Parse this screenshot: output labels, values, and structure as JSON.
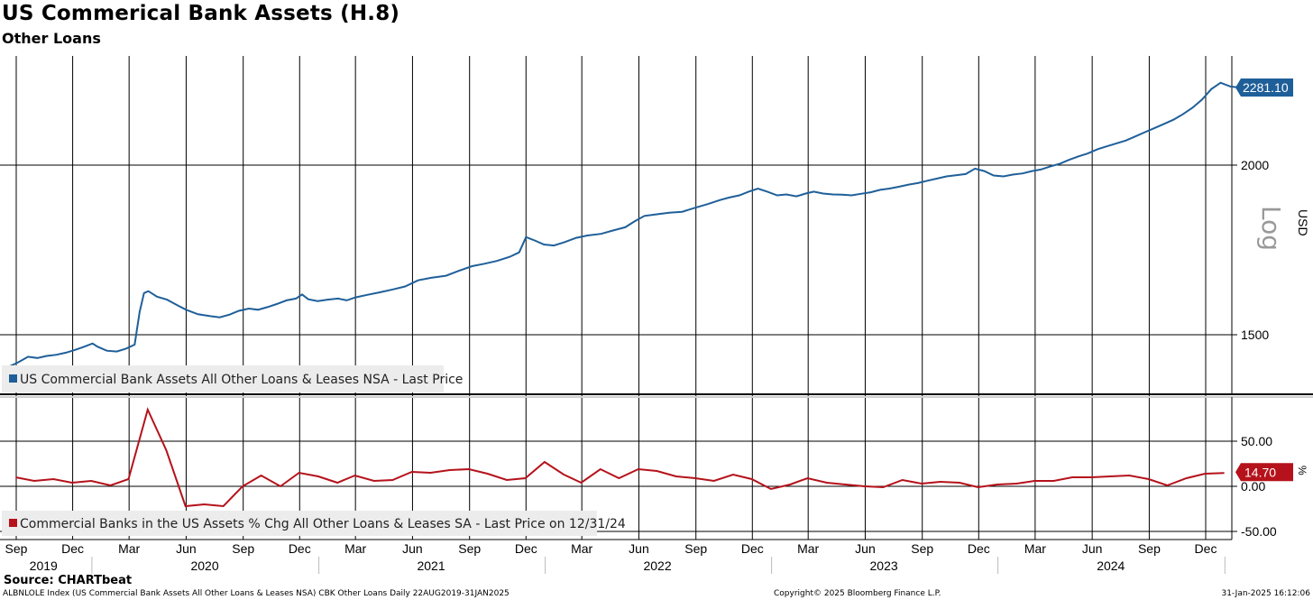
{
  "header": {
    "title": "US Commerical Bank Assets (H.8)",
    "subtitle": "Other Loans"
  },
  "footer": {
    "source": "Source: CHARTbeat",
    "index_desc": "ALBNLOLE Index (US Commercial Bank Assets All Other Loans & Leases NSA) CBK Other Loans  Daily 22AUG2019-31JAN2025",
    "copyright": "Copyright© 2025 Bloomberg Finance L.P.",
    "timestamp": "31-Jan-2025 16:12:06"
  },
  "colors": {
    "top_series": "#1f5f99",
    "bottom_series": "#b5121b",
    "top_badge": "#1f5f99",
    "bottom_badge": "#b5121b"
  },
  "chart_data": [
    {
      "type": "line",
      "scale": "log",
      "ylabel": "USD",
      "scale_label": "Log",
      "ylim": [
        1400,
        2330
      ],
      "yticks": [
        {
          "value": 1500,
          "label": "1500"
        },
        {
          "value": 2000,
          "label": "2000"
        }
      ],
      "last_value_label": "2281.10",
      "legend": "US Commercial Bank Assets All Other Loans & Leases NSA - Last Price",
      "series": [
        {
          "name": "US Commercial Bank Assets All Other Loans & Leases NSA - Last Price",
          "points": [
            [
              "2019-08-22",
              1422
            ],
            [
              "2019-09-05",
              1432
            ],
            [
              "2019-09-20",
              1445
            ],
            [
              "2019-10-05",
              1442
            ],
            [
              "2019-10-20",
              1447
            ],
            [
              "2019-11-05",
              1450
            ],
            [
              "2019-11-20",
              1455
            ],
            [
              "2019-12-05",
              1462
            ],
            [
              "2019-12-20",
              1470
            ],
            [
              "2020-01-02",
              1478
            ],
            [
              "2020-01-10",
              1470
            ],
            [
              "2020-01-25",
              1460
            ],
            [
              "2020-02-10",
              1458
            ],
            [
              "2020-02-25",
              1465
            ],
            [
              "2020-03-10",
              1475
            ],
            [
              "2020-03-18",
              1560
            ],
            [
              "2020-03-25",
              1610
            ],
            [
              "2020-04-01",
              1615
            ],
            [
              "2020-04-15",
              1600
            ],
            [
              "2020-05-01",
              1592
            ],
            [
              "2020-05-20",
              1575
            ],
            [
              "2020-06-01",
              1565
            ],
            [
              "2020-06-20",
              1553
            ],
            [
              "2020-07-10",
              1548
            ],
            [
              "2020-07-25",
              1545
            ],
            [
              "2020-08-10",
              1552
            ],
            [
              "2020-08-25",
              1562
            ],
            [
              "2020-09-10",
              1568
            ],
            [
              "2020-09-25",
              1565
            ],
            [
              "2020-10-10",
              1572
            ],
            [
              "2020-10-25",
              1580
            ],
            [
              "2020-11-10",
              1590
            ],
            [
              "2020-11-25",
              1595
            ],
            [
              "2020-12-05",
              1606
            ],
            [
              "2020-12-15",
              1593
            ],
            [
              "2020-12-30",
              1588
            ],
            [
              "2021-01-15",
              1592
            ],
            [
              "2021-02-01",
              1595
            ],
            [
              "2021-02-15",
              1590
            ],
            [
              "2021-03-01",
              1598
            ],
            [
              "2021-03-20",
              1605
            ],
            [
              "2021-04-10",
              1612
            ],
            [
              "2021-05-01",
              1620
            ],
            [
              "2021-05-20",
              1628
            ],
            [
              "2021-06-10",
              1645
            ],
            [
              "2021-07-01",
              1652
            ],
            [
              "2021-07-25",
              1658
            ],
            [
              "2021-08-15",
              1672
            ],
            [
              "2021-09-05",
              1685
            ],
            [
              "2021-09-25",
              1692
            ],
            [
              "2021-10-15",
              1700
            ],
            [
              "2021-11-05",
              1712
            ],
            [
              "2021-11-20",
              1725
            ],
            [
              "2021-12-01",
              1770
            ],
            [
              "2021-12-15",
              1760
            ],
            [
              "2021-12-30",
              1748
            ],
            [
              "2022-01-15",
              1745
            ],
            [
              "2022-02-01",
              1755
            ],
            [
              "2022-02-20",
              1768
            ],
            [
              "2022-03-10",
              1775
            ],
            [
              "2022-04-01",
              1780
            ],
            [
              "2022-04-20",
              1790
            ],
            [
              "2022-05-10",
              1800
            ],
            [
              "2022-05-25",
              1818
            ],
            [
              "2022-06-10",
              1835
            ],
            [
              "2022-06-30",
              1840
            ],
            [
              "2022-07-20",
              1845
            ],
            [
              "2022-08-10",
              1848
            ],
            [
              "2022-08-30",
              1860
            ],
            [
              "2022-09-20",
              1872
            ],
            [
              "2022-10-10",
              1885
            ],
            [
              "2022-10-25",
              1893
            ],
            [
              "2022-11-10",
              1900
            ],
            [
              "2022-11-25",
              1912
            ],
            [
              "2022-12-10",
              1922
            ],
            [
              "2022-12-25",
              1912
            ],
            [
              "2023-01-10",
              1900
            ],
            [
              "2023-01-25",
              1903
            ],
            [
              "2023-02-10",
              1897
            ],
            [
              "2023-02-25",
              1906
            ],
            [
              "2023-03-10",
              1912
            ],
            [
              "2023-03-25",
              1906
            ],
            [
              "2023-04-10",
              1903
            ],
            [
              "2023-04-25",
              1902
            ],
            [
              "2023-05-10",
              1900
            ],
            [
              "2023-05-25",
              1905
            ],
            [
              "2023-06-10",
              1910
            ],
            [
              "2023-06-25",
              1918
            ],
            [
              "2023-07-10",
              1922
            ],
            [
              "2023-07-25",
              1928
            ],
            [
              "2023-08-10",
              1935
            ],
            [
              "2023-08-25",
              1940
            ],
            [
              "2023-09-10",
              1948
            ],
            [
              "2023-09-25",
              1955
            ],
            [
              "2023-10-10",
              1962
            ],
            [
              "2023-10-25",
              1966
            ],
            [
              "2023-11-10",
              1970
            ],
            [
              "2023-11-25",
              1988
            ],
            [
              "2023-12-10",
              1980
            ],
            [
              "2023-12-25",
              1965
            ],
            [
              "2024-01-10",
              1962
            ],
            [
              "2024-01-25",
              1968
            ],
            [
              "2024-02-10",
              1972
            ],
            [
              "2024-02-25",
              1980
            ],
            [
              "2024-03-10",
              1985
            ],
            [
              "2024-03-25",
              1995
            ],
            [
              "2024-04-10",
              2005
            ],
            [
              "2024-04-25",
              2018
            ],
            [
              "2024-05-10",
              2030
            ],
            [
              "2024-05-25",
              2040
            ],
            [
              "2024-06-10",
              2055
            ],
            [
              "2024-06-25",
              2065
            ],
            [
              "2024-07-10",
              2075
            ],
            [
              "2024-07-25",
              2085
            ],
            [
              "2024-08-10",
              2100
            ],
            [
              "2024-08-25",
              2115
            ],
            [
              "2024-09-10",
              2130
            ],
            [
              "2024-09-25",
              2145
            ],
            [
              "2024-10-10",
              2160
            ],
            [
              "2024-10-25",
              2180
            ],
            [
              "2024-11-10",
              2205
            ],
            [
              "2024-11-25",
              2235
            ],
            [
              "2024-12-10",
              2275
            ],
            [
              "2024-12-25",
              2300
            ],
            [
              "2025-01-10",
              2285
            ],
            [
              "2025-01-25",
              2281.1
            ]
          ]
        }
      ]
    },
    {
      "type": "line",
      "ylabel": "%",
      "ylim": [
        -60,
        90
      ],
      "yticks": [
        {
          "value": 50,
          "label": "50.00"
        },
        {
          "value": 0,
          "label": "0.00"
        },
        {
          "value": -50,
          "label": "-50.00"
        }
      ],
      "last_value_label": "14.70",
      "legend": "Commercial Banks in the US Assets % Chg All Other Loans & Leases SA - Last Price on 12/31/24",
      "series": [
        {
          "name": "Commercial Banks in the US Assets % Chg All Other Loans & Leases SA - Last Price on 12/31/24",
          "points": [
            [
              "2019-08-31",
              10
            ],
            [
              "2019-09-30",
              6
            ],
            [
              "2019-10-31",
              8
            ],
            [
              "2019-11-30",
              4
            ],
            [
              "2019-12-31",
              6
            ],
            [
              "2020-01-31",
              1
            ],
            [
              "2020-02-29",
              8
            ],
            [
              "2020-03-31",
              85
            ],
            [
              "2020-04-30",
              40
            ],
            [
              "2020-05-31",
              -22
            ],
            [
              "2020-06-30",
              -20
            ],
            [
              "2020-07-31",
              -22
            ],
            [
              "2020-08-31",
              0
            ],
            [
              "2020-09-30",
              12
            ],
            [
              "2020-10-31",
              0
            ],
            [
              "2020-11-30",
              15
            ],
            [
              "2020-12-31",
              11
            ],
            [
              "2021-01-31",
              4
            ],
            [
              "2021-02-28",
              12
            ],
            [
              "2021-03-31",
              6
            ],
            [
              "2021-04-30",
              7
            ],
            [
              "2021-05-31",
              16
            ],
            [
              "2021-06-30",
              15
            ],
            [
              "2021-07-31",
              18
            ],
            [
              "2021-08-31",
              19
            ],
            [
              "2021-09-30",
              14
            ],
            [
              "2021-10-31",
              7
            ],
            [
              "2021-11-30",
              9
            ],
            [
              "2021-12-31",
              27
            ],
            [
              "2022-01-31",
              13
            ],
            [
              "2022-02-28",
              4
            ],
            [
              "2022-03-31",
              19
            ],
            [
              "2022-04-30",
              9
            ],
            [
              "2022-05-31",
              19
            ],
            [
              "2022-06-30",
              17
            ],
            [
              "2022-07-31",
              11
            ],
            [
              "2022-08-31",
              9
            ],
            [
              "2022-09-30",
              6
            ],
            [
              "2022-10-31",
              13
            ],
            [
              "2022-11-30",
              8
            ],
            [
              "2022-12-31",
              -3
            ],
            [
              "2023-01-31",
              2
            ],
            [
              "2023-02-28",
              9
            ],
            [
              "2023-03-31",
              4
            ],
            [
              "2023-04-30",
              2
            ],
            [
              "2023-05-31",
              0
            ],
            [
              "2023-06-30",
              -1
            ],
            [
              "2023-07-31",
              7
            ],
            [
              "2023-08-31",
              3
            ],
            [
              "2023-09-30",
              5
            ],
            [
              "2023-10-31",
              4
            ],
            [
              "2023-11-30",
              -1
            ],
            [
              "2023-12-31",
              2
            ],
            [
              "2024-01-31",
              3
            ],
            [
              "2024-02-29",
              6
            ],
            [
              "2024-03-31",
              6
            ],
            [
              "2024-04-30",
              10
            ],
            [
              "2024-05-31",
              10
            ],
            [
              "2024-06-30",
              11
            ],
            [
              "2024-07-31",
              12
            ],
            [
              "2024-08-31",
              8
            ],
            [
              "2024-09-30",
              1
            ],
            [
              "2024-10-31",
              9
            ],
            [
              "2024-11-30",
              14
            ],
            [
              "2024-12-31",
              14.7
            ]
          ]
        }
      ]
    }
  ],
  "x_axis": {
    "months": [
      {
        "date": "2019-09-01",
        "label": "Sep"
      },
      {
        "date": "2019-12-01",
        "label": "Dec"
      },
      {
        "date": "2020-03-01",
        "label": "Mar"
      },
      {
        "date": "2020-06-01",
        "label": "Jun"
      },
      {
        "date": "2020-09-01",
        "label": "Sep"
      },
      {
        "date": "2020-12-01",
        "label": "Dec"
      },
      {
        "date": "2021-03-01",
        "label": "Mar"
      },
      {
        "date": "2021-06-01",
        "label": "Jun"
      },
      {
        "date": "2021-09-01",
        "label": "Sep"
      },
      {
        "date": "2021-12-01",
        "label": "Dec"
      },
      {
        "date": "2022-03-01",
        "label": "Mar"
      },
      {
        "date": "2022-06-01",
        "label": "Jun"
      },
      {
        "date": "2022-09-01",
        "label": "Sep"
      },
      {
        "date": "2022-12-01",
        "label": "Dec"
      },
      {
        "date": "2023-03-01",
        "label": "Mar"
      },
      {
        "date": "2023-06-01",
        "label": "Jun"
      },
      {
        "date": "2023-09-01",
        "label": "Sep"
      },
      {
        "date": "2023-12-01",
        "label": "Dec"
      },
      {
        "date": "2024-03-01",
        "label": "Mar"
      },
      {
        "date": "2024-06-01",
        "label": "Jun"
      },
      {
        "date": "2024-09-01",
        "label": "Sep"
      },
      {
        "date": "2024-12-01",
        "label": "Dec"
      }
    ],
    "years": [
      {
        "date": "2019-10-15",
        "label": "2019"
      },
      {
        "date": "2020-07-01",
        "label": "2020"
      },
      {
        "date": "2021-07-01",
        "label": "2021"
      },
      {
        "date": "2022-07-01",
        "label": "2022"
      },
      {
        "date": "2023-07-01",
        "label": "2023"
      },
      {
        "date": "2024-07-01",
        "label": "2024"
      }
    ],
    "year_boundaries": [
      "2020-01-01",
      "2021-01-01",
      "2022-01-01",
      "2023-01-01",
      "2024-01-01",
      "2025-01-01"
    ],
    "range": [
      "2019-08-22",
      "2025-01-31"
    ]
  }
}
